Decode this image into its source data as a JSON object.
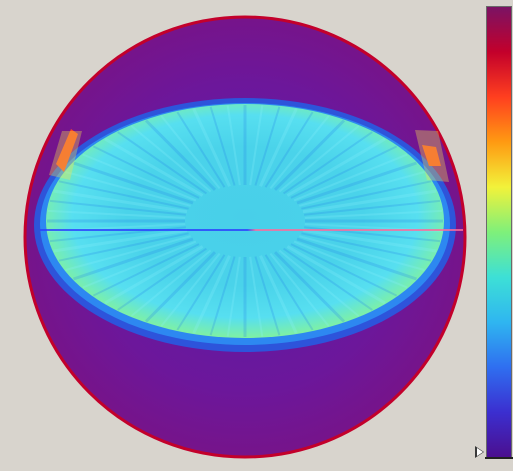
{
  "viewer": {
    "background_color": "#d8d4cd",
    "colormap": [
      "#4b0f8f",
      "#3b2fd0",
      "#2f6ff0",
      "#2fb6f0",
      "#3de0d6",
      "#7ff07a",
      "#f2f23a",
      "#ff9a12",
      "#ff3f1f",
      "#c3002b",
      "#7b1364"
    ],
    "disc": {
      "outer_color": "#76148a",
      "rim_color": "#c3002b",
      "field_center_color": "#4ad3ea",
      "field_mid_color": "#54d8ef",
      "field_edge_color": "#7ff1a2",
      "inner_band_color": "#1c78ee",
      "hotspot_color": "#ff4a1f"
    },
    "slice_line": {
      "left_color": "#2b3dff",
      "right_color": "#ff6a9a"
    }
  },
  "colorbar": {
    "marker_icon": "triangle-pointer-icon"
  }
}
